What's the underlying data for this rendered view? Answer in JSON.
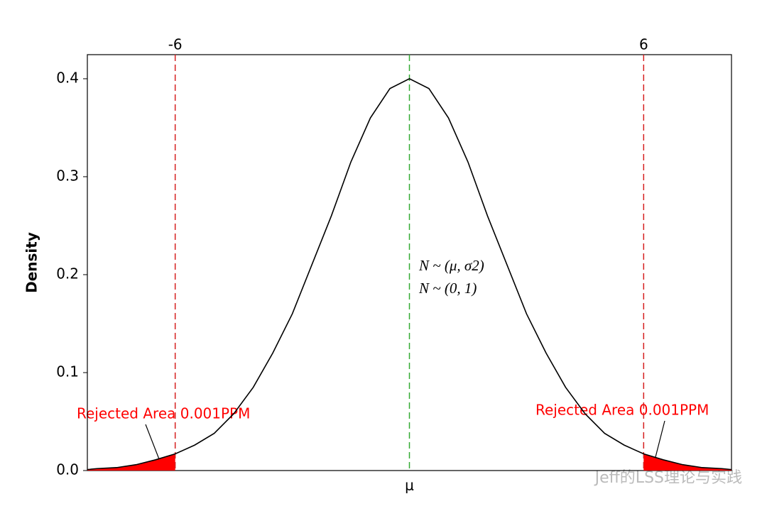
{
  "chart_data": {
    "type": "line",
    "ylabel": "Density",
    "x": [
      -8.25,
      -8,
      -7.5,
      -7,
      -6.5,
      -6,
      -5.5,
      -5,
      -4.5,
      -4,
      -3.5,
      -3,
      -2.5,
      -2,
      -1.5,
      -1,
      -0.5,
      0,
      0.5,
      1,
      1.5,
      2,
      2.5,
      3,
      3.5,
      4,
      4.5,
      5,
      5.5,
      6,
      6.5,
      7,
      7.5,
      8,
      8.25
    ],
    "values": [
      0.001,
      0.002,
      0.003,
      0.006,
      0.011,
      0.017,
      0.026,
      0.038,
      0.058,
      0.085,
      0.12,
      0.16,
      0.21,
      0.26,
      0.315,
      0.36,
      0.39,
      0.4,
      0.39,
      0.36,
      0.315,
      0.26,
      0.21,
      0.16,
      0.12,
      0.085,
      0.058,
      0.038,
      0.026,
      0.017,
      0.011,
      0.006,
      0.003,
      0.002,
      0.001
    ],
    "color": "#000000",
    "xlim": [
      -8.25,
      8.25
    ],
    "ylim": [
      0,
      0.4246
    ],
    "yticks": [
      {
        "value": 0,
        "label": "0.0"
      },
      {
        "value": 0.1,
        "label": "0.1"
      },
      {
        "value": 0.2,
        "label": "0.2"
      },
      {
        "value": 0.3,
        "label": "0.3"
      },
      {
        "value": 0.4,
        "label": "0.4"
      }
    ],
    "xticks": [
      {
        "value": 0,
        "label": "μ"
      }
    ],
    "xticks_color": "#33aa33",
    "top_ticks": [
      -6,
      6
    ],
    "top_ticks_color": "#d62020",
    "shade_color": "#ff0000",
    "annotations": [
      "N ~ (μ, σ2)",
      "N ~ (0, 1)"
    ],
    "rejected_labels": [
      "Rejected Area 0.001PPM",
      "Rejected Area 0.001PPM"
    ],
    "watermark": "Jeff的LSS理论与实践"
  }
}
